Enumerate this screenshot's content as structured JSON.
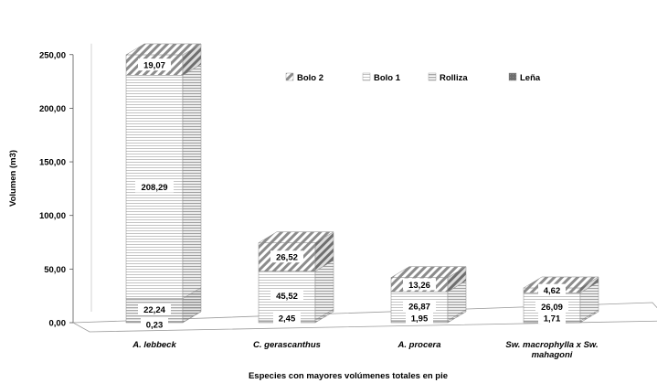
{
  "chart_data": {
    "type": "bar",
    "stacked": true,
    "three_d": true,
    "title": "",
    "xlabel": "Especies con mayores volúmenes totales en pie",
    "ylabel": "Volumen (m3)",
    "ylim": [
      0,
      250
    ],
    "yticks": [
      "0,00",
      "50,00",
      "100,00",
      "150,00",
      "200,00",
      "250,00"
    ],
    "grid": false,
    "legend_position": "top-right inside plot",
    "categories": [
      "A. lebbeck",
      "C. gerascanthus",
      "A. procera",
      "Sw. macrophylla x Sw. mahagoni"
    ],
    "category_lines": [
      [
        "A. lebbeck"
      ],
      [
        "C. gerascanthus"
      ],
      [
        "A. procera"
      ],
      [
        "Sw. macrophylla x Sw.",
        "mahagoni"
      ]
    ],
    "series": [
      {
        "name": "Leña",
        "pattern": "dark-solid",
        "color": "#7a7a7a",
        "values": [
          0.23,
          0,
          0,
          0
        ],
        "labels": [
          "0,23",
          "",
          "",
          ""
        ]
      },
      {
        "name": "Rolliza",
        "pattern": "horizontal-lines",
        "color": "#b8b8b8",
        "values": [
          22.24,
          2.45,
          1.95,
          1.71
        ],
        "labels": [
          "22,24",
          "2,45",
          "1,95",
          "1,71"
        ]
      },
      {
        "name": "Bolo 1",
        "pattern": "fine-horizontal-lines",
        "color": "#d6d6d6",
        "values": [
          208.29,
          45.52,
          26.87,
          26.09
        ],
        "labels": [
          "208,29",
          "45,52",
          "26,87",
          "26,09"
        ]
      },
      {
        "name": "Bolo 2",
        "pattern": "diagonal-stripes",
        "color": "#9a9a9a",
        "values": [
          19.07,
          26.52,
          13.26,
          4.62
        ],
        "labels": [
          "19,07",
          "26,52",
          "13,26",
          "4,62"
        ]
      }
    ]
  }
}
